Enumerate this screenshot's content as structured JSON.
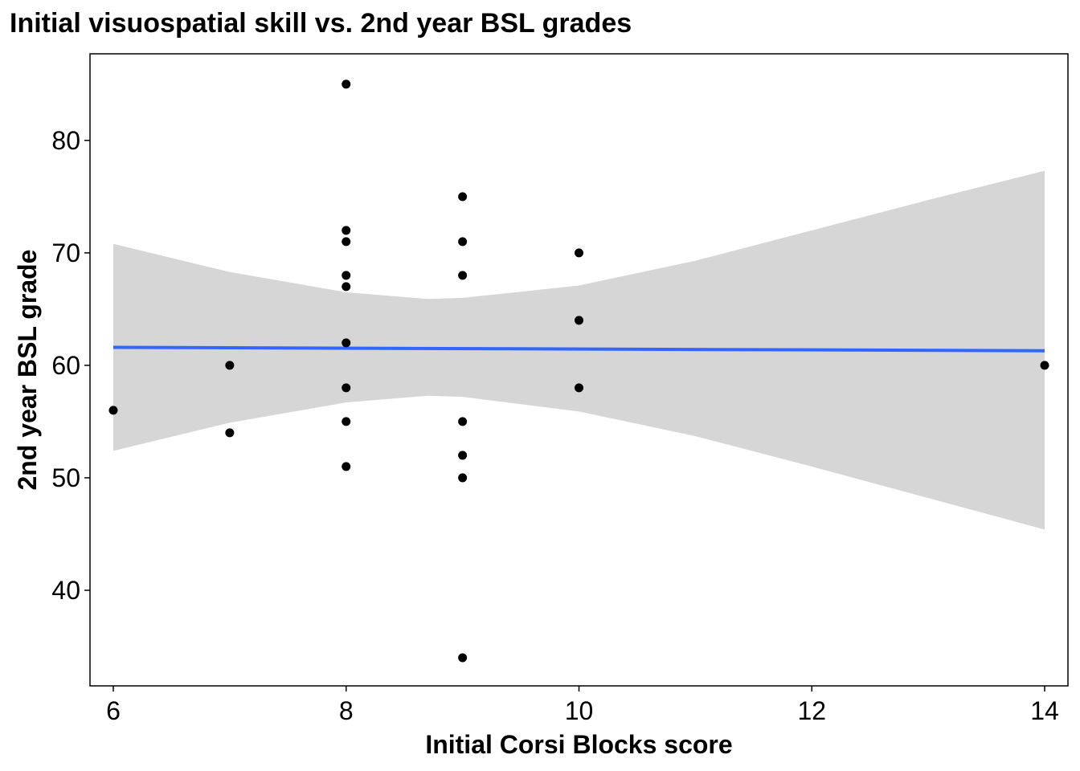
{
  "chart_data": {
    "type": "scatter",
    "title": "Initial visuospatial skill vs. 2nd year BSL grades",
    "xlabel": "Initial Corsi Blocks score",
    "ylabel": "2nd year BSL grade",
    "xlim": [
      5.8,
      14.2
    ],
    "ylim": [
      31.5,
      87.7
    ],
    "x_ticks": [
      6,
      8,
      10,
      12,
      14
    ],
    "y_ticks": [
      40,
      50,
      60,
      70,
      80
    ],
    "grid": false,
    "legend": "none",
    "points": [
      {
        "x": 6,
        "y": 56
      },
      {
        "x": 7,
        "y": 60
      },
      {
        "x": 7,
        "y": 54
      },
      {
        "x": 8,
        "y": 85
      },
      {
        "x": 8,
        "y": 72
      },
      {
        "x": 8,
        "y": 71
      },
      {
        "x": 8,
        "y": 68
      },
      {
        "x": 8,
        "y": 67
      },
      {
        "x": 8,
        "y": 62
      },
      {
        "x": 8,
        "y": 58
      },
      {
        "x": 8,
        "y": 55
      },
      {
        "x": 8,
        "y": 51
      },
      {
        "x": 9,
        "y": 75
      },
      {
        "x": 9,
        "y": 71
      },
      {
        "x": 9,
        "y": 68
      },
      {
        "x": 9,
        "y": 55
      },
      {
        "x": 9,
        "y": 52
      },
      {
        "x": 9,
        "y": 50
      },
      {
        "x": 9,
        "y": 34
      },
      {
        "x": 10,
        "y": 70
      },
      {
        "x": 10,
        "y": 64
      },
      {
        "x": 10,
        "y": 58
      },
      {
        "x": 14,
        "y": 60
      }
    ],
    "fit_line": {
      "x": [
        6,
        14
      ],
      "y": [
        61.6,
        61.3
      ]
    },
    "confidence_band": {
      "x": [
        6,
        7,
        8,
        8.7,
        9,
        10,
        11,
        12,
        13,
        14
      ],
      "upper": [
        70.8,
        68.3,
        66.5,
        65.9,
        66.0,
        67.1,
        69.3,
        72.0,
        74.7,
        77.3
      ],
      "lower": [
        52.4,
        54.9,
        56.7,
        57.3,
        57.2,
        55.9,
        53.7,
        51.0,
        48.2,
        45.4
      ]
    },
    "colors": {
      "points": "#000000",
      "fit_line": "#3366ff",
      "band": "#d6d6d6",
      "axis": "#000000"
    }
  }
}
